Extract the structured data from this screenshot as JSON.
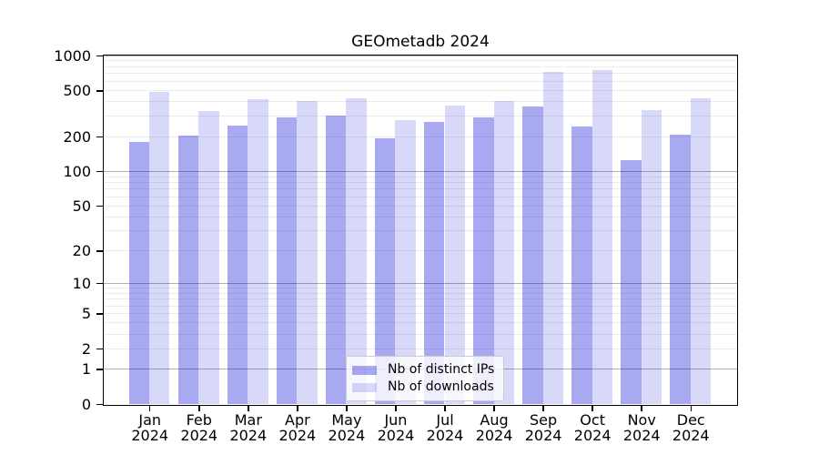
{
  "chart_data": {
    "type": "bar",
    "title": "GEOmetadb 2024",
    "categories": [
      "Jan 2024",
      "Feb 2024",
      "Mar 2024",
      "Apr 2024",
      "May 2024",
      "Jun 2024",
      "Jul 2024",
      "Aug 2024",
      "Sep 2024",
      "Oct 2024",
      "Nov 2024",
      "Dec 2024"
    ],
    "months": [
      "Jan",
      "Feb",
      "Mar",
      "Apr",
      "May",
      "Jun",
      "Jul",
      "Aug",
      "Sep",
      "Oct",
      "Nov",
      "Dec"
    ],
    "year": "2024",
    "series": [
      {
        "name": "Nb of distinct IPs",
        "values": [
          181,
          205,
          250,
          293,
          303,
          194,
          268,
          292,
          365,
          246,
          126,
          207
        ],
        "color": "rgba(10,10,215,0.35)",
        "solid_color": "#a8a8f0"
      },
      {
        "name": "Nb of downloads",
        "values": [
          490,
          335,
          420,
          407,
          430,
          280,
          370,
          409,
          725,
          752,
          341,
          430
        ],
        "color": "rgba(10,10,215,0.16)",
        "solid_color": "#d8d8f8"
      }
    ],
    "yscale": "log1p",
    "yticks": [
      0,
      1,
      2,
      5,
      10,
      20,
      50,
      100,
      200,
      500,
      1000
    ],
    "ylim": [
      0,
      1020
    ],
    "grid": {
      "orientation": "horizontal",
      "major_at": [
        1,
        10,
        100,
        1000
      ],
      "minor_at": "2-9, 20-90, 200-900",
      "major_color": "#b0b0b0",
      "minor_color": "#ebebeb"
    },
    "legend": {
      "position": "lower center inside plot"
    },
    "axis_color": "#000000",
    "background_color": "#ffffff"
  }
}
